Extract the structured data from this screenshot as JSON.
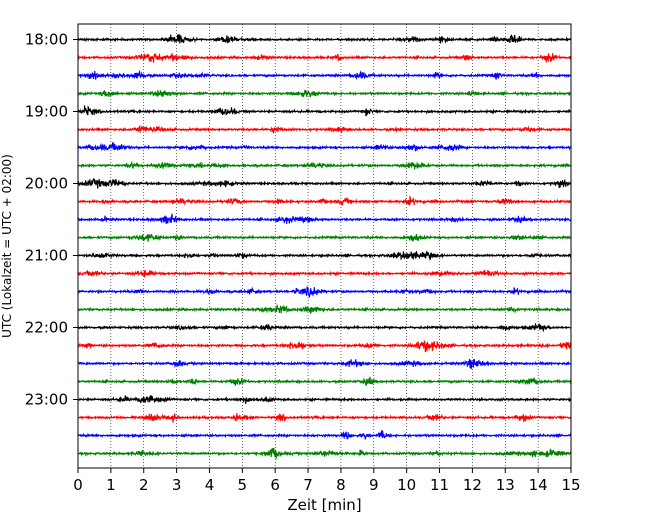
{
  "chart_data": {
    "type": "line",
    "title": "",
    "xlabel": "Zeit  [min]",
    "ylabel": "UTC (Lokalzeit = UTC + 02:00)",
    "xlim": [
      0,
      15
    ],
    "x_ticks": [
      0,
      1,
      2,
      3,
      4,
      5,
      6,
      7,
      8,
      9,
      10,
      11,
      12,
      13,
      14,
      15
    ],
    "y_ticks": [
      "18:00",
      "19:00",
      "20:00",
      "21:00",
      "22:00",
      "23:00"
    ],
    "grid": "vertical dotted at each minute",
    "trace_interval_min": 15,
    "traces": [
      {
        "start": "18:00",
        "color": "#000000"
      },
      {
        "start": "18:15",
        "color": "#ff0000"
      },
      {
        "start": "18:30",
        "color": "#0000ff"
      },
      {
        "start": "18:45",
        "color": "#008000"
      },
      {
        "start": "19:00",
        "color": "#000000"
      },
      {
        "start": "19:15",
        "color": "#ff0000"
      },
      {
        "start": "19:30",
        "color": "#0000ff"
      },
      {
        "start": "19:45",
        "color": "#008000"
      },
      {
        "start": "20:00",
        "color": "#000000"
      },
      {
        "start": "20:15",
        "color": "#ff0000"
      },
      {
        "start": "20:30",
        "color": "#0000ff"
      },
      {
        "start": "20:45",
        "color": "#008000"
      },
      {
        "start": "21:00",
        "color": "#000000"
      },
      {
        "start": "21:15",
        "color": "#ff0000"
      },
      {
        "start": "21:30",
        "color": "#0000ff"
      },
      {
        "start": "21:45",
        "color": "#008000"
      },
      {
        "start": "22:00",
        "color": "#000000"
      },
      {
        "start": "22:15",
        "color": "#ff0000"
      },
      {
        "start": "22:30",
        "color": "#0000ff"
      },
      {
        "start": "22:45",
        "color": "#008000"
      },
      {
        "start": "23:00",
        "color": "#000000"
      },
      {
        "start": "23:15",
        "color": "#ff0000"
      },
      {
        "start": "23:30",
        "color": "#0000ff"
      },
      {
        "start": "23:45",
        "color": "#008000"
      }
    ],
    "colors": [
      "#000000",
      "#ff0000",
      "#0000ff",
      "#008000"
    ]
  }
}
